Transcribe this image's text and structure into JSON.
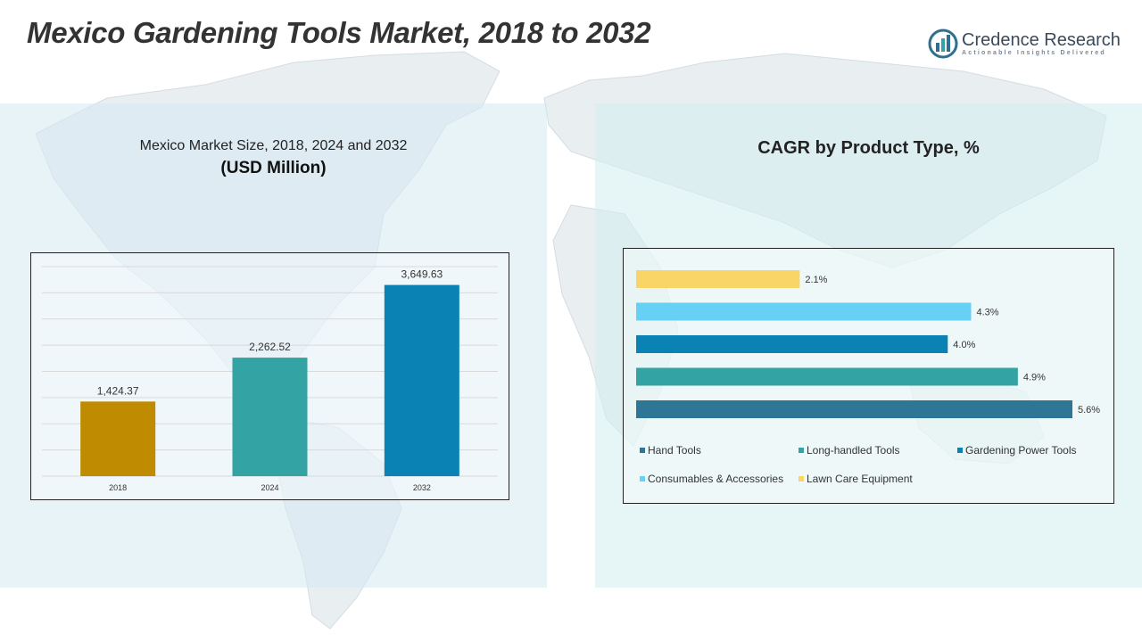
{
  "title": "Mexico Gardening Tools Market, 2018 to 2032",
  "brand": {
    "name": "Credence Research",
    "tagline": "Actionable Insights Delivered",
    "color": "#3b4a5a"
  },
  "left_panel": {
    "subtitle": "Mexico Market Size, 2018, 2024 and 2032",
    "unit": "(USD Million)"
  },
  "right_panel": {
    "title": "CAGR by Product Type, %"
  },
  "chart_data": [
    {
      "type": "bar",
      "orientation": "vertical",
      "title": "Mexico Market Size, 2018, 2024 and 2032",
      "ylabel": "(USD Million)",
      "categories": [
        "2018",
        "2024",
        "2032"
      ],
      "values": [
        1424.37,
        2262.52,
        3649.63
      ],
      "value_labels": [
        "1,424.37",
        "2,262.52",
        "3,649.63"
      ],
      "colors": [
        "#bf8b00",
        "#34a3a3",
        "#0a82b4"
      ],
      "ylim": [
        0,
        4000
      ],
      "grid": true
    },
    {
      "type": "bar",
      "orientation": "horizontal",
      "title": "CAGR by Product Type, %",
      "series": [
        {
          "name": "Hand Tools",
          "value": 5.6,
          "label": "5.6%",
          "color": "#2f7596"
        },
        {
          "name": "Long-handled Tools",
          "value": 4.9,
          "label": "4.9%",
          "color": "#34a3a3"
        },
        {
          "name": "Gardening Power Tools",
          "value": 4.0,
          "label": "4.0%",
          "color": "#0a82b4"
        },
        {
          "name": "Consumables & Accessories",
          "value": 4.3,
          "label": "4.3%",
          "color": "#66d0f5"
        },
        {
          "name": "Lawn Care Equipment",
          "value": 2.1,
          "label": "2.1%",
          "color": "#f9d466"
        }
      ],
      "xlim": [
        0,
        5.6
      ],
      "legend": "bottom"
    }
  ]
}
